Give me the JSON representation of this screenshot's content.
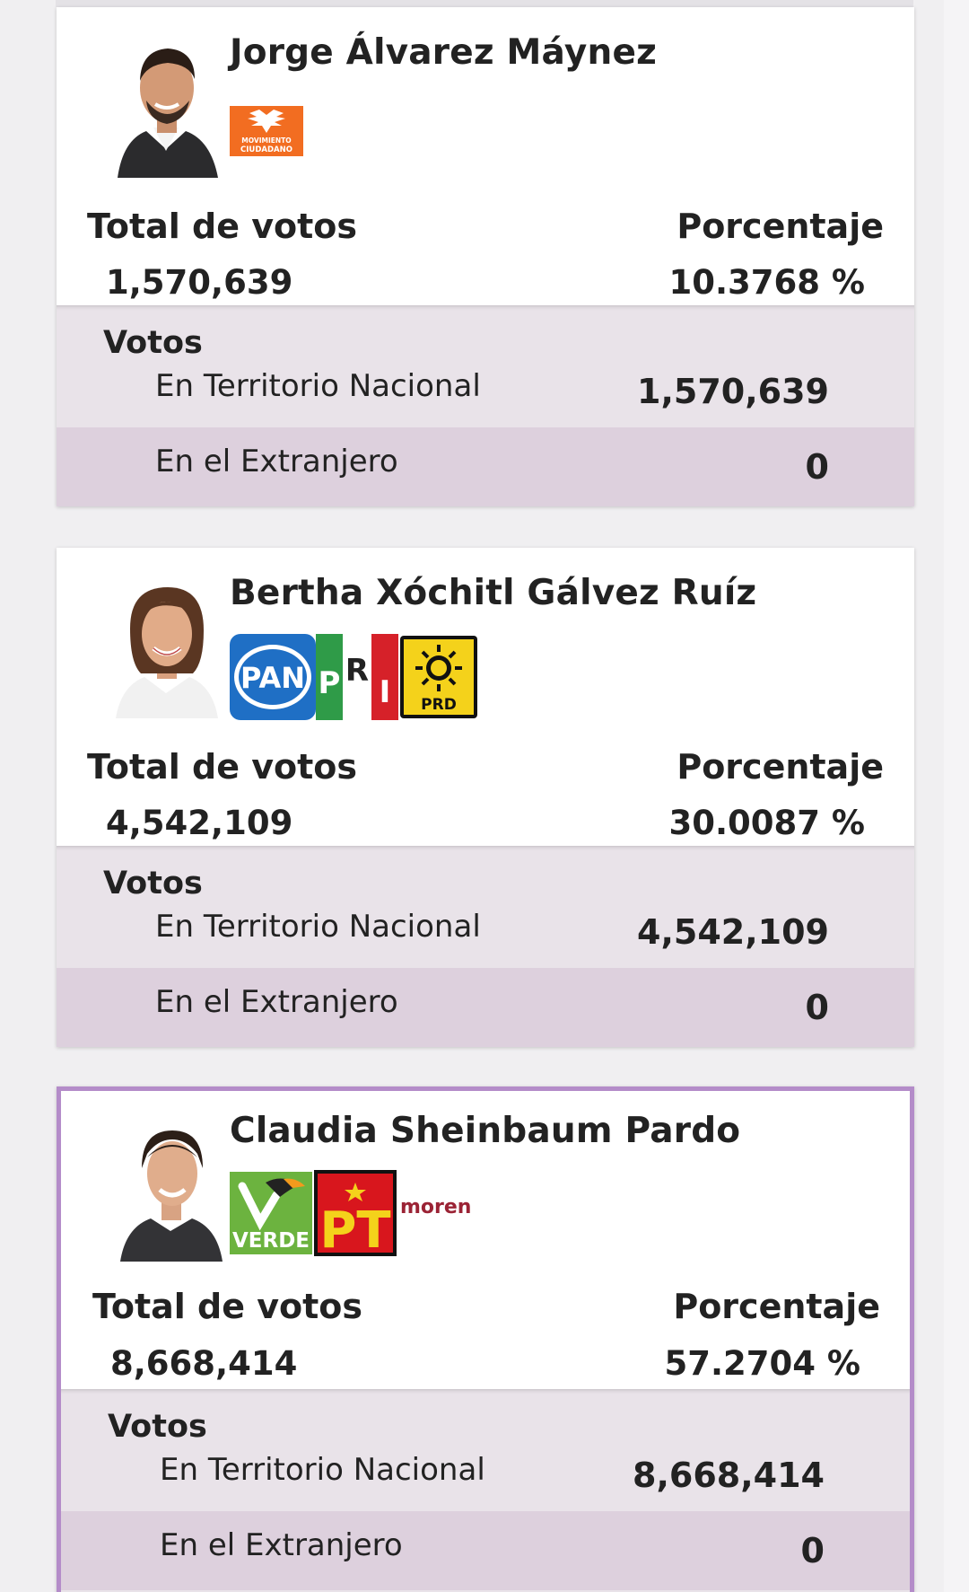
{
  "colors": {
    "page_background": "#f0eff1",
    "details_background": "#e9e3e9",
    "details_alt_row": "#ddd0dd",
    "winner_border": "#b48cc9",
    "mc_orange": "#f26d21",
    "pan_blue": "#1f6fc5",
    "pri_green": "#2f9b48",
    "pri_red": "#d62129",
    "prd_yellow": "#f4d21b",
    "verde_green": "#6cb33f",
    "pt_red": "#d8161d",
    "morena_maroon": "#9b2335"
  },
  "candidates": [
    {
      "name": "Jorge Álvarez Máynez",
      "party_logos": [
        "movimiento-ciudadano"
      ],
      "logo_text": [
        "MOVIMIENTO",
        "CIUDADANO"
      ],
      "total_label": "Total de votos",
      "total_votes": "1,570,639",
      "pct_label": "Porcentaje",
      "percentage": "10.3768 %",
      "votos_label": "Votos",
      "territorio_label": "En Territorio Nacional",
      "territorio_votes": "1,570,639",
      "extranjero_label": "En el Extranjero",
      "extranjero_votes": "0"
    },
    {
      "name": "Bertha Xóchitl Gálvez Ruíz",
      "party_logos": [
        "pan",
        "pri",
        "prd"
      ],
      "logo_text": [
        "PAN",
        "P",
        "R",
        "I",
        "PRD"
      ],
      "total_label": "Total de votos",
      "total_votes": "4,542,109",
      "pct_label": "Porcentaje",
      "percentage": "30.0087 %",
      "votos_label": "Votos",
      "territorio_label": "En Territorio Nacional",
      "territorio_votes": "4,542,109",
      "extranjero_label": "En el Extranjero",
      "extranjero_votes": "0"
    },
    {
      "name": "Claudia Sheinbaum Pardo",
      "party_logos": [
        "verde",
        "pt",
        "morena"
      ],
      "logo_text": [
        "VERDE",
        "PT",
        "morena"
      ],
      "total_label": "Total de votos",
      "total_votes": "8,668,414",
      "pct_label": "Porcentaje",
      "percentage": "57.2704 %",
      "votos_label": "Votos",
      "territorio_label": "En Territorio Nacional",
      "territorio_votes": "8,668,414",
      "extranjero_label": "En el Extranjero",
      "extranjero_votes": "0"
    }
  ]
}
